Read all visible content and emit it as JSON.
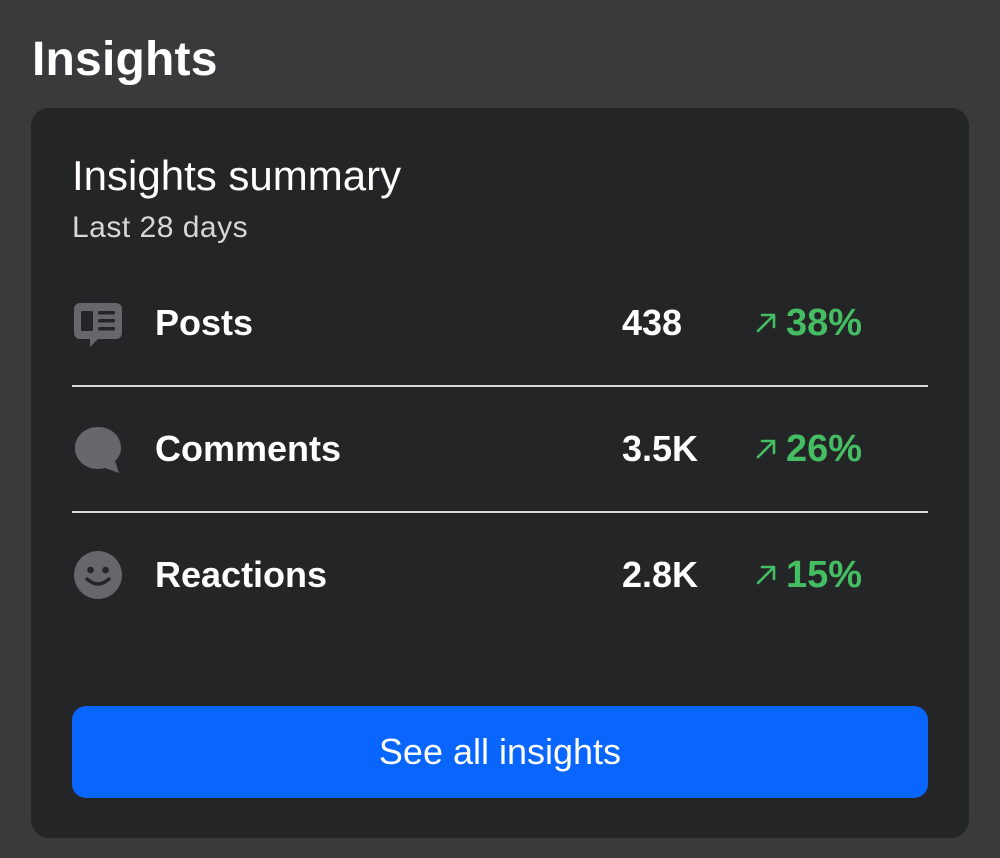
{
  "header": {
    "title": "Insights"
  },
  "card": {
    "title": "Insights summary",
    "subtitle": "Last 28 days",
    "rows": [
      {
        "icon": "posts-icon",
        "label": "Posts",
        "value": "438",
        "change": "38%",
        "trend": "up"
      },
      {
        "icon": "comment-icon",
        "label": "Comments",
        "value": "3.5K",
        "change": "26%",
        "trend": "up"
      },
      {
        "icon": "smiley-icon",
        "label": "Reactions",
        "value": "2.8K",
        "change": "15%",
        "trend": "up"
      }
    ],
    "button_label": "See all insights"
  },
  "colors": {
    "background": "#3a3a3c",
    "card": "#242526",
    "positive": "#45bd62",
    "primary_button": "#0866ff",
    "icon": "#65676b"
  }
}
